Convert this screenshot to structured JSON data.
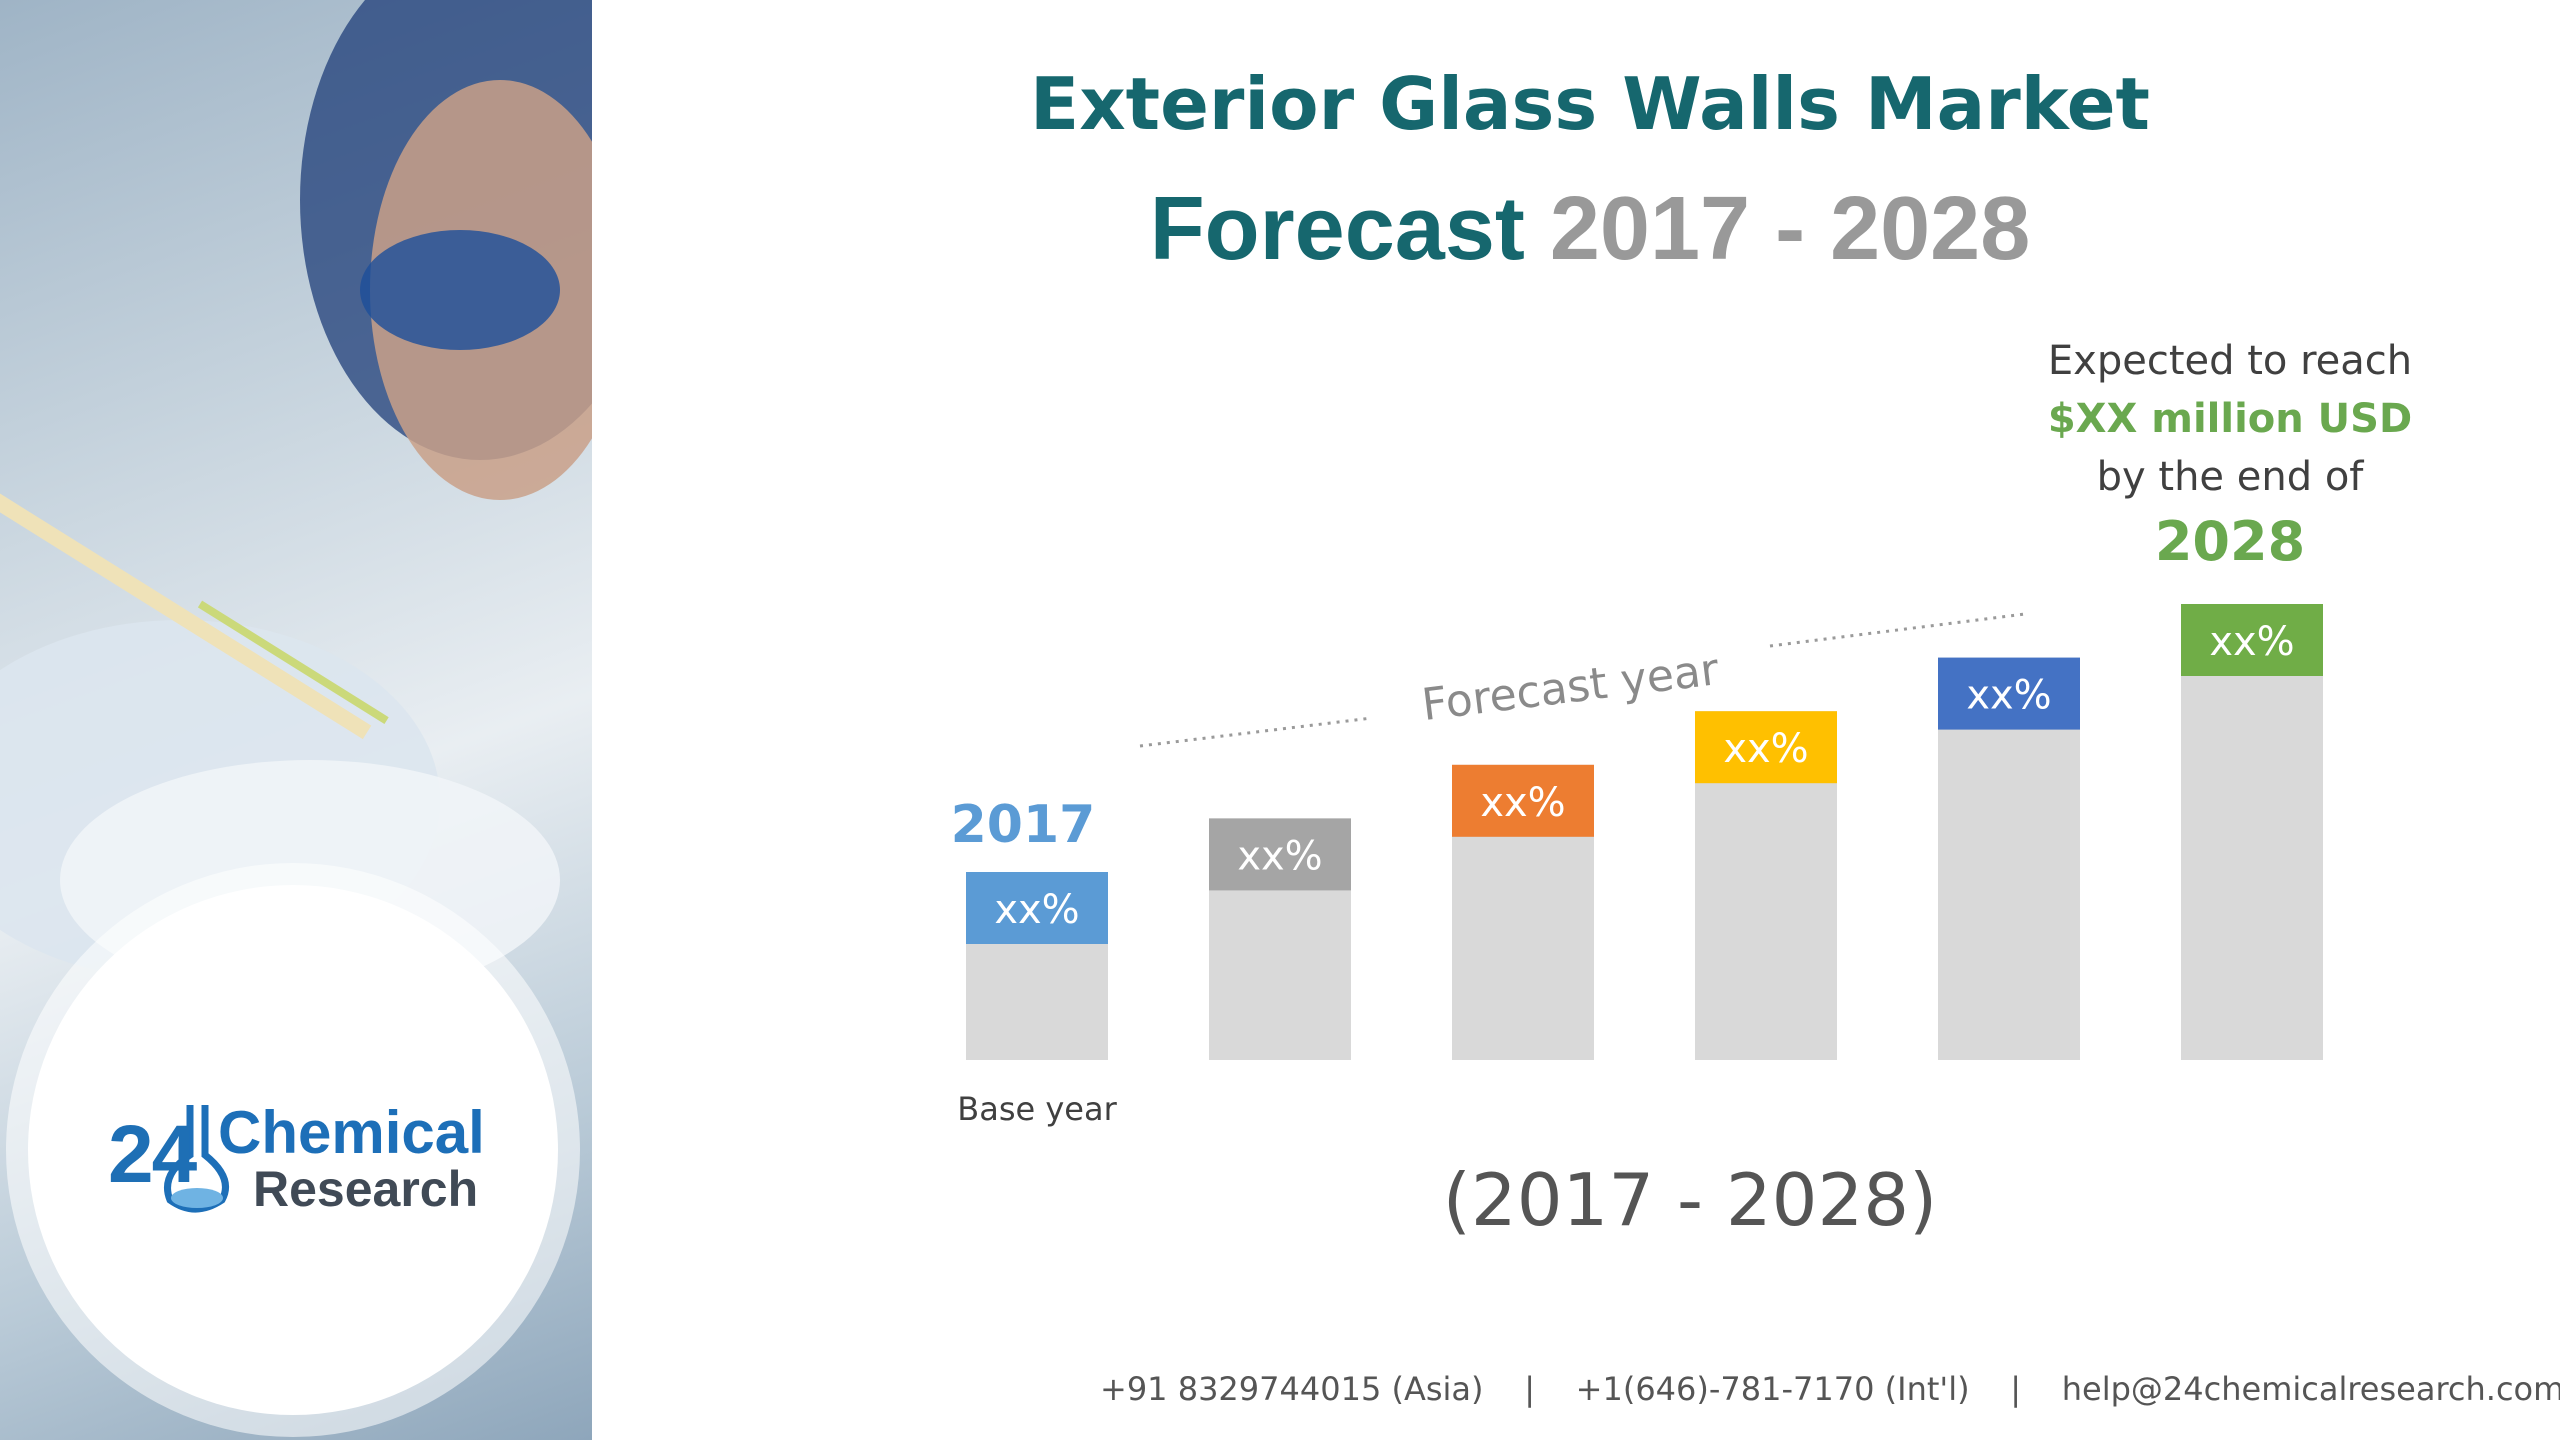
{
  "title": "Exterior Glass Walls Market",
  "subtitle": {
    "word": "Forecast",
    "years": "2017 - 2028"
  },
  "callout": {
    "line1": "Expected to reach",
    "line2": "$XX million USD",
    "line3": "by the end of",
    "year": "2028"
  },
  "period": "(2017 - 2028)",
  "footer": {
    "phone_asia": "+91 8329744015 (Asia)",
    "separator": "|",
    "phone_intl": "+1(646)-781-7170 (Int'l)",
    "email": "help@24chemicalresearch.com"
  },
  "logo": {
    "number": "24",
    "line1": "Chemical",
    "line2": "Research"
  },
  "chart_data": {
    "type": "bar",
    "title": "",
    "xlabel": "",
    "ylabel": "",
    "categories": [
      "",
      "",
      "",
      "",
      "",
      ""
    ],
    "values": [
      1,
      2,
      3,
      4,
      5,
      6
    ],
    "ylim": [
      0,
      6
    ],
    "grid": false,
    "bar_labels": [
      "xx%",
      "xx%",
      "xx%",
      "xx%",
      "xx%",
      "xx%"
    ],
    "bar_colors": [
      "#5b9bd5",
      "#a5a5a5",
      "#ed7d31",
      "#ffc000",
      "#4472c4",
      "#70ad47"
    ],
    "base_color": "#d9d9d9",
    "annotations": {
      "start_year": "2017",
      "start_year_color": "#5b9bd5",
      "base_label": "Base year",
      "forecast_label": "Forecast year"
    }
  }
}
